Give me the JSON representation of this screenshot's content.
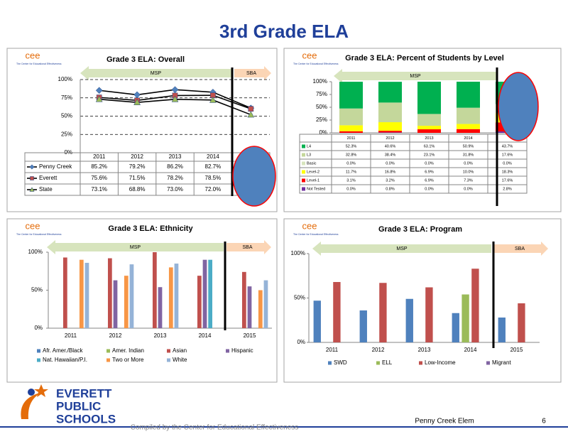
{
  "title": "3rd Grade ELA",
  "logo": {
    "mark": "cee",
    "tagline": "The Center for Educational Effectiveness"
  },
  "footer": {
    "district": [
      "EVERETT",
      "PUBLIC",
      "SCHOOLS"
    ],
    "compiled": "Compiled by the Center for Educational Effectiveness",
    "school": "Penny Creek Elem",
    "page": 6
  },
  "chart_data": [
    {
      "type": "line",
      "title": "Grade 3 ELA: Overall",
      "annotations": [
        "MSP",
        "SBA"
      ],
      "categories": [
        "2011",
        "2012",
        "2013",
        "2014",
        null
      ],
      "line_color": "#000000",
      "series": [
        {
          "name": "Penny Creek",
          "color": "#4f81bd",
          "marker": "diamond",
          "values": [
            85.2,
            79.2,
            86.2,
            82.7,
            61
          ],
          "value_labels": [
            "85.2%",
            "79.2%",
            "86.2%",
            "82.7%",
            null
          ]
        },
        {
          "name": "Everett",
          "color": "#c0504d",
          "marker": "square",
          "values": [
            75.6,
            71.5,
            78.2,
            78.5,
            60
          ],
          "value_labels": [
            "75.6%",
            "71.5%",
            "78.2%",
            "78.5%",
            null
          ]
        },
        {
          "name": "State",
          "color": "#9bbb59",
          "marker": "triangle",
          "values": [
            73.1,
            68.8,
            73.0,
            72.0,
            52
          ],
          "value_labels": [
            "73.1%",
            "68.8%",
            "73.0%",
            "72.0%",
            null
          ]
        }
      ],
      "ylim": [
        0,
        100
      ],
      "yticks": [
        {
          "value": 0,
          "label": "0%"
        },
        {
          "value": 25,
          "label": "25%"
        },
        {
          "value": 50,
          "label": "50%"
        },
        {
          "value": 75,
          "label": "75%"
        },
        {
          "value": 100,
          "label": "100%"
        }
      ],
      "grid": true
    },
    {
      "type": "stacked_bar",
      "title": "Grade 3 ELA: Percent of Students by Level",
      "annotations": [
        "MSP"
      ],
      "categories": [
        "2011",
        "2012",
        "2013",
        "2014",
        null
      ],
      "series": [
        {
          "name": "L4",
          "color": "#00b050",
          "values": [
            52.3,
            40.6,
            63.1,
            50.9,
            43.7
          ],
          "value_labels": [
            "52.3%",
            "40.6%",
            "63.1%",
            "50.9%",
            "43.7%"
          ]
        },
        {
          "name": "L3",
          "color": "#c4d79b",
          "values": [
            32.8,
            38.4,
            23.1,
            31.8,
            17.6
          ],
          "value_labels": [
            "32.8%",
            "38.4%",
            "23.1%",
            "31.8%",
            "17.6%"
          ]
        },
        {
          "name": "Basic",
          "color": "#d7e4bd",
          "values": [
            0.0,
            0.0,
            0.0,
            0.0,
            0.0
          ],
          "value_labels": [
            "0.0%",
            "0.0%",
            "0.0%",
            "0.0%",
            "0.0%"
          ]
        },
        {
          "name": "Level-2",
          "color": "#ffff00",
          "values": [
            11.7,
            16.8,
            6.9,
            10.0,
            18.3
          ],
          "value_labels": [
            "11.7%",
            "16.8%",
            "6.9%",
            "10.0%",
            "18.3%"
          ]
        },
        {
          "name": "Level-1",
          "color": "#ff0000",
          "values": [
            3.1,
            3.2,
            6.9,
            7.3,
            17.6
          ],
          "value_labels": [
            "3.1%",
            "3.2%",
            "6.9%",
            "7.3%",
            "17.6%"
          ]
        },
        {
          "name": "Not Tested",
          "color": "#7030a0",
          "values": [
            0.0,
            0.8,
            0.0,
            0.0,
            2.8
          ],
          "value_labels": [
            "0.0%",
            "0.8%",
            "0.0%",
            "0.0%",
            "2.8%"
          ]
        }
      ],
      "ylim": [
        0,
        100
      ],
      "yticks": [
        {
          "value": 0,
          "label": "0%"
        },
        {
          "value": 25,
          "label": "25%"
        },
        {
          "value": 50,
          "label": "50%"
        },
        {
          "value": 75,
          "label": "75%"
        },
        {
          "value": 100,
          "label": "100%"
        }
      ],
      "grid": false
    },
    {
      "type": "grouped_bar",
      "title": "Grade 3 ELA: Ethnicity",
      "annotations": [
        "MSP",
        "SBA"
      ],
      "categories": [
        "2011",
        "2012",
        "2013",
        "2014",
        "2015"
      ],
      "series": [
        {
          "name": "Afr. Amer./Black",
          "color": "#4f81bd",
          "values": [
            null,
            null,
            null,
            null,
            null
          ]
        },
        {
          "name": "Amer. Indian",
          "color": "#9bbb59",
          "values": [
            null,
            null,
            null,
            null,
            null
          ]
        },
        {
          "name": "Asian",
          "color": "#c0504d",
          "values": [
            93,
            92,
            100,
            69,
            74
          ]
        },
        {
          "name": "Hispanic",
          "color": "#8064a2",
          "values": [
            null,
            63,
            54,
            90,
            55
          ]
        },
        {
          "name": "Nat. Hawaiian/P.I.",
          "color": "#4bacc6",
          "values": [
            null,
            null,
            null,
            90,
            null
          ]
        },
        {
          "name": "Two or More",
          "color": "#f79646",
          "values": [
            90,
            69,
            80,
            null,
            50
          ]
        },
        {
          "name": "White",
          "color": "#95b3d7",
          "values": [
            86,
            84,
            85,
            null,
            63
          ]
        }
      ],
      "ylim": [
        0,
        100
      ],
      "yticks": [
        {
          "value": 0,
          "label": "0%"
        },
        {
          "value": 50,
          "label": "50%"
        },
        {
          "value": 100,
          "label": "100%"
        }
      ],
      "grid": false
    },
    {
      "type": "grouped_bar",
      "title": "Grade 3 ELA: Program",
      "annotations": [
        "MSP",
        "SBA"
      ],
      "categories": [
        "2011",
        "2012",
        "2013",
        "2014",
        "2015"
      ],
      "series": [
        {
          "name": "SWD",
          "color": "#4f81bd",
          "values": [
            47,
            36,
            49,
            33,
            28
          ]
        },
        {
          "name": "ELL",
          "color": "#9bbb59",
          "values": [
            null,
            null,
            null,
            54,
            null
          ]
        },
        {
          "name": "Low-Income",
          "color": "#c0504d",
          "values": [
            68,
            67,
            62,
            83,
            44
          ]
        },
        {
          "name": "Migrant",
          "color": "#8064a2",
          "values": [
            null,
            null,
            null,
            null,
            null
          ]
        }
      ],
      "ylim": [
        0,
        100
      ],
      "yticks": [
        {
          "value": 0,
          "label": "0%"
        },
        {
          "value": 50,
          "label": "50%"
        },
        {
          "value": 100,
          "label": "100%"
        }
      ],
      "grid": false
    }
  ]
}
